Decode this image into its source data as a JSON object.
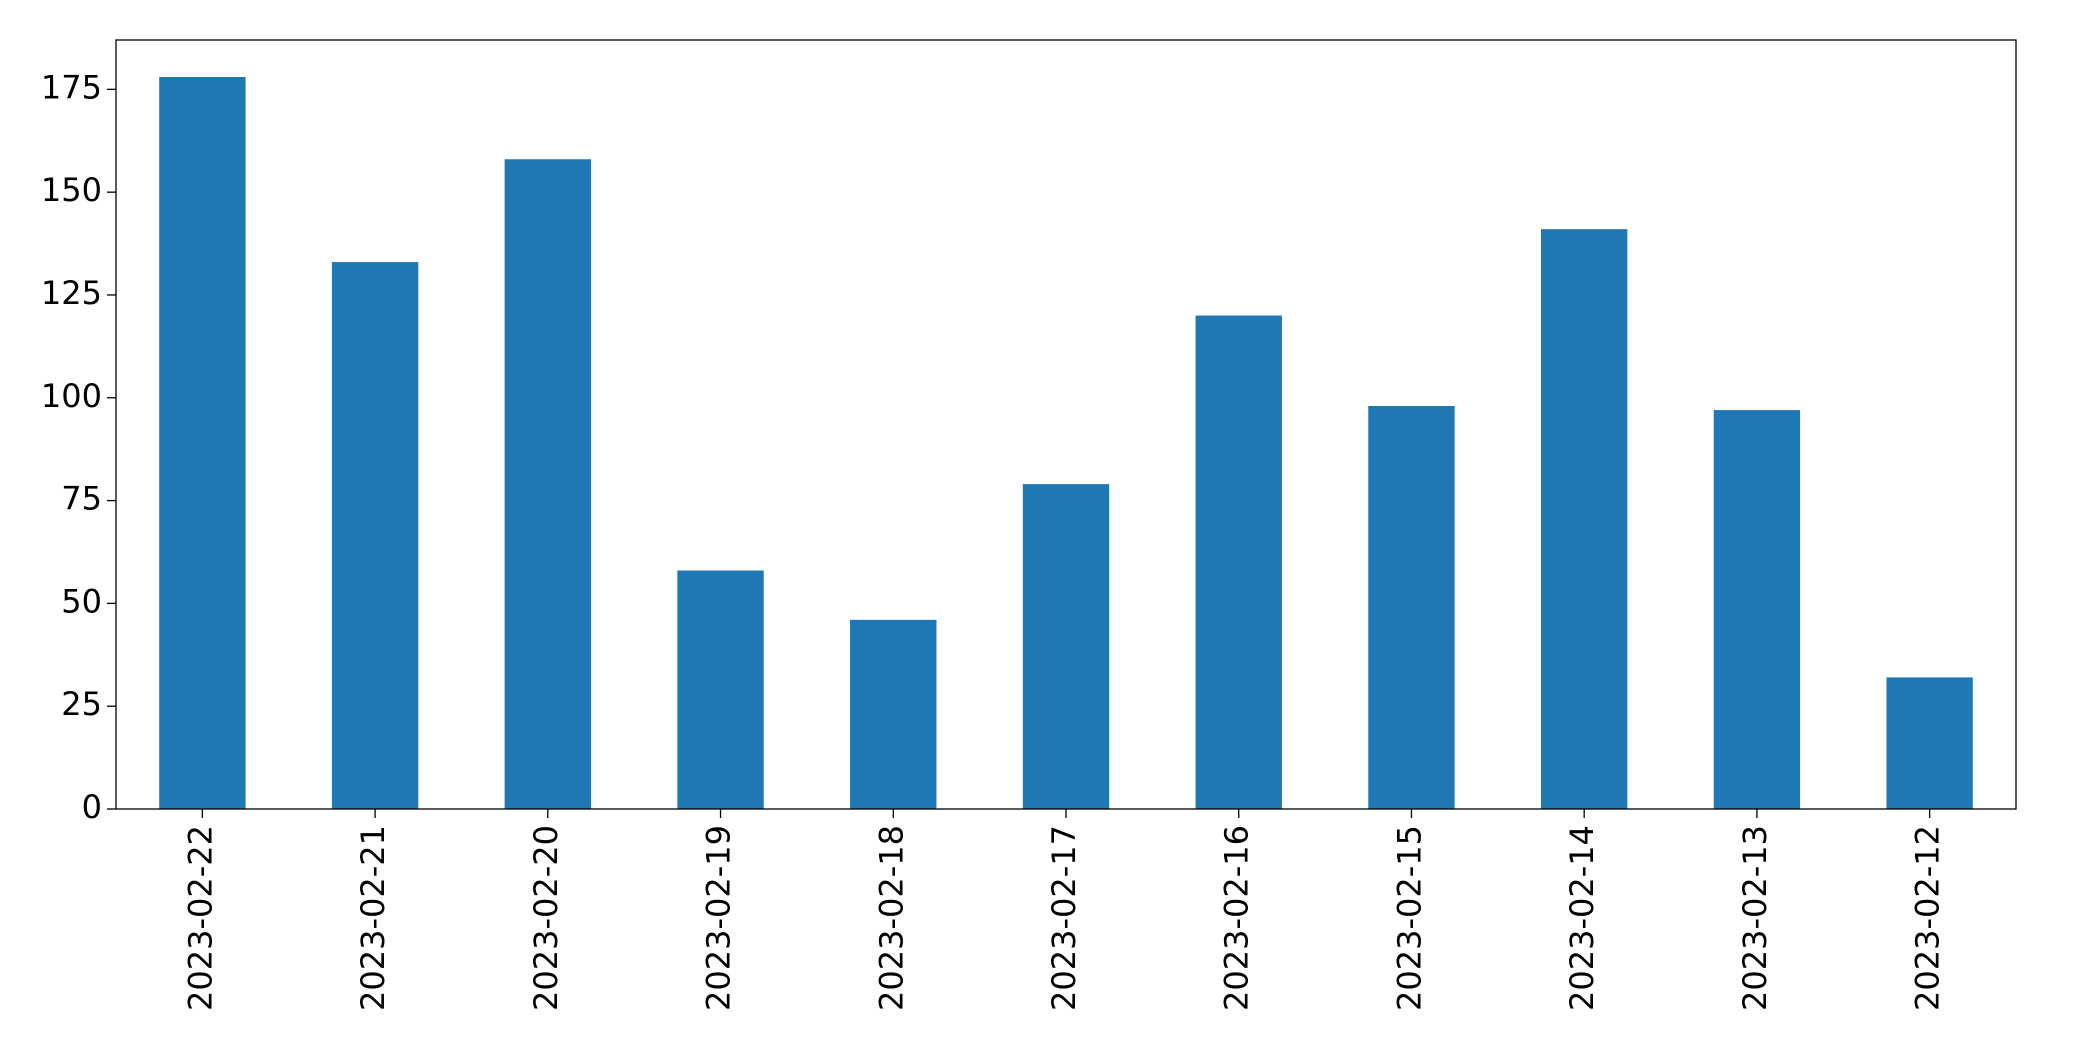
{
  "chart_data": {
    "type": "bar",
    "categories": [
      "2023-02-22",
      "2023-02-21",
      "2023-02-20",
      "2023-02-19",
      "2023-02-18",
      "2023-02-17",
      "2023-02-16",
      "2023-02-15",
      "2023-02-14",
      "2023-02-13",
      "2023-02-12"
    ],
    "values": [
      178,
      133,
      158,
      58,
      46,
      79,
      120,
      98,
      141,
      97,
      32
    ],
    "color": "#1f77b4",
    "ylim": [
      0,
      187
    ],
    "yticks": [
      0,
      25,
      50,
      75,
      100,
      125,
      150,
      175
    ],
    "grid": false
  }
}
